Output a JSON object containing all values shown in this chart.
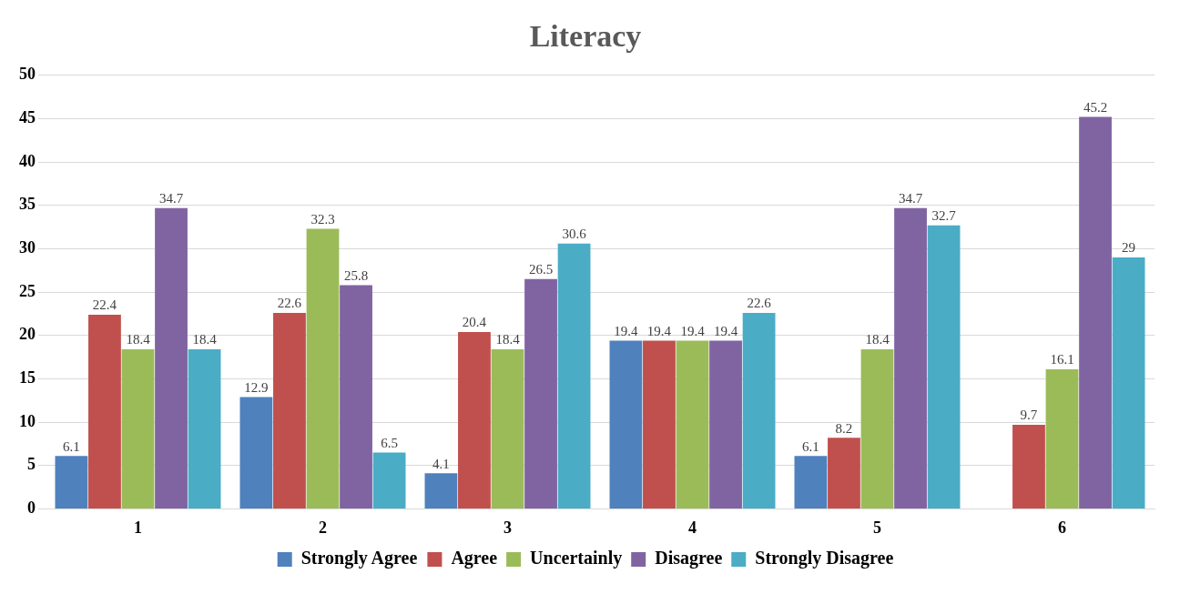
{
  "chart_data": {
    "type": "bar",
    "title": "Literacy",
    "categories": [
      "1",
      "2",
      "3",
      "4",
      "5",
      "6"
    ],
    "series": [
      {
        "name": "Strongly Agree",
        "color": "#4f81bd",
        "values": [
          6.1,
          12.9,
          4.1,
          19.4,
          6.1,
          null
        ]
      },
      {
        "name": "Agree",
        "color": "#c0504d",
        "values": [
          22.4,
          22.6,
          20.4,
          19.4,
          8.2,
          9.7
        ]
      },
      {
        "name": "Uncertainly",
        "color": "#9bbb59",
        "values": [
          18.4,
          32.3,
          18.4,
          19.4,
          18.4,
          16.1
        ]
      },
      {
        "name": "Disagree",
        "color": "#8064a2",
        "values": [
          34.7,
          25.8,
          26.5,
          19.4,
          34.7,
          45.2
        ]
      },
      {
        "name": "Strongly Disagree",
        "color": "#4bacc6",
        "values": [
          18.4,
          6.5,
          30.6,
          22.6,
          32.7,
          29
        ]
      }
    ],
    "ylim": [
      0,
      50
    ],
    "yticks": [
      0,
      5,
      10,
      15,
      20,
      25,
      30,
      35,
      40,
      45,
      50
    ],
    "grid": "y",
    "legend": "bottom",
    "data_labels": true
  }
}
